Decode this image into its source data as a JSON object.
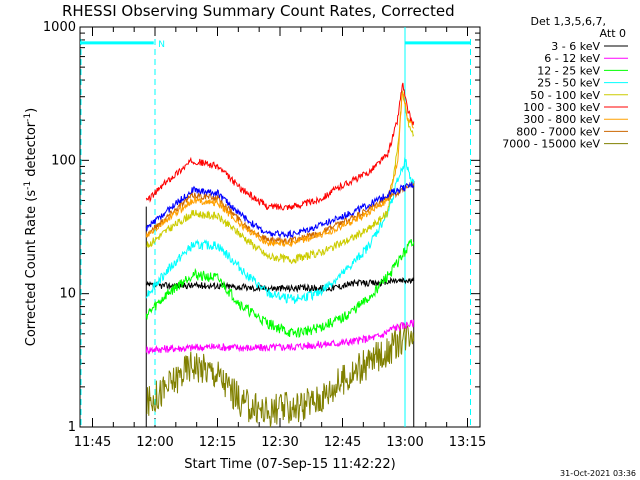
{
  "chart_data": {
    "type": "line",
    "title": "RHESSI Observing Summary Count Rates, Corrected",
    "xlabel": "Start Time (07-Sep-15 11:42:22)",
    "ylabel_main": "Corrected Count Rate (s",
    "ylabel_sup1": "-1",
    "ylabel_mid": " detector",
    "ylabel_sup2": "-1",
    "ylabel_end": ")",
    "yscale": "log",
    "ylim": [
      1,
      1000
    ],
    "xlim": [
      11.7,
      13.3
    ],
    "x_unit": "decimal hour",
    "x_ticks": [
      "11:45",
      "12:00",
      "12:15",
      "12:30",
      "12:45",
      "13:00",
      "13:15"
    ],
    "y_ticks": [
      "1",
      "10",
      "100",
      "1000"
    ],
    "legend_header": [
      "Det 1,3,5,6,7,",
      "Att 0"
    ],
    "legend_placement": "right",
    "data_start": 11.965,
    "data_end": 13.035,
    "eclipse_segments": [
      [
        11.7,
        11.995
      ],
      [
        13.0,
        13.262
      ]
    ],
    "eclipse_level": 760,
    "saa_marker": "N",
    "saa_marker_x": 12.005,
    "vertical_lines": {
      "cyan_dashed": [
        11.7,
        12.0,
        13.262
      ],
      "cyan_solid": [
        13.0
      ]
    },
    "series": [
      {
        "name": "3 - 6 keV",
        "color": "#000000",
        "x": [
          11.97,
          12.1,
          12.25,
          12.4,
          12.55,
          12.7,
          12.8,
          12.9,
          12.95,
          13.03
        ],
        "y": [
          11.5,
          11.5,
          11.5,
          11,
          11,
          11,
          12,
          12,
          12.5,
          12.5
        ]
      },
      {
        "name": "6 - 12 keV",
        "color": "#ff00ff",
        "x": [
          11.97,
          12.1,
          12.25,
          12.4,
          12.55,
          12.7,
          12.8,
          12.9,
          12.95,
          13.03
        ],
        "y": [
          3.8,
          3.9,
          4.0,
          3.9,
          4.0,
          4.2,
          4.4,
          4.8,
          5.5,
          6
        ]
      },
      {
        "name": "12 - 25 keV",
        "color": "#00ff00",
        "x": [
          11.97,
          12.05,
          12.15,
          12.25,
          12.35,
          12.45,
          12.55,
          12.65,
          12.75,
          12.85,
          12.95,
          13.03
        ],
        "y": [
          7,
          10,
          14,
          13,
          8,
          6,
          5,
          5.5,
          6.5,
          9,
          15,
          25
        ]
      },
      {
        "name": "25 - 50 keV",
        "color": "#00ffff",
        "x": [
          11.97,
          12.05,
          12.15,
          12.25,
          12.35,
          12.45,
          12.55,
          12.65,
          12.75,
          12.85,
          12.93,
          12.97,
          13.0,
          13.03
        ],
        "y": [
          10,
          15,
          23,
          23,
          15,
          10,
          9,
          10,
          14,
          22,
          40,
          70,
          100,
          68
        ]
      },
      {
        "name": "50 - 100 keV",
        "color": "#cccc00",
        "x": [
          11.97,
          12.05,
          12.15,
          12.25,
          12.35,
          12.45,
          12.55,
          12.65,
          12.75,
          12.85,
          12.93,
          12.97,
          12.99,
          13.01,
          13.03
        ],
        "y": [
          23,
          30,
          40,
          38,
          27,
          19,
          18,
          20,
          24,
          30,
          40,
          120,
          330,
          200,
          160
        ]
      },
      {
        "name": "100 - 300 keV",
        "color": "#ff0000",
        "x": [
          11.97,
          12.05,
          12.15,
          12.25,
          12.35,
          12.45,
          12.55,
          12.65,
          12.75,
          12.85,
          12.93,
          12.97,
          12.99,
          13.01,
          13.03
        ],
        "y": [
          50,
          70,
          100,
          90,
          60,
          45,
          45,
          50,
          65,
          80,
          110,
          200,
          380,
          240,
          190
        ]
      },
      {
        "name": "300 - 800 keV",
        "color": "#ffa000",
        "x": [
          11.97,
          12.05,
          12.15,
          12.25,
          12.35,
          12.45,
          12.55,
          12.65,
          12.75,
          12.85,
          12.93,
          12.97,
          12.99,
          13.01,
          13.03
        ],
        "y": [
          27,
          36,
          50,
          48,
          32,
          24,
          24,
          27,
          32,
          40,
          50,
          95,
          350,
          210,
          180
        ]
      },
      {
        "name": "800 - 7000 keV",
        "color": "#cc6600",
        "x": [
          11.97,
          12.05,
          12.15,
          12.25,
          12.35,
          12.45,
          12.55,
          12.65,
          12.75,
          12.85,
          12.95,
          13.03
        ],
        "y": [
          28,
          38,
          55,
          52,
          34,
          25,
          25,
          28,
          34,
          42,
          55,
          66
        ]
      },
      {
        "name": "7000 - 15000 keV",
        "color": "#808000",
        "x": [
          11.97,
          12.05,
          12.15,
          12.25,
          12.35,
          12.45,
          12.55,
          12.65,
          12.75,
          12.85,
          12.95,
          13.03
        ],
        "y": [
          1.5,
          2,
          3,
          2.5,
          1.5,
          1.3,
          1.4,
          1.6,
          2.2,
          3,
          4,
          5.5
        ]
      }
    ],
    "extra_series_colors": {
      "total_blue": "#0000ff"
    },
    "blue_series": {
      "x": [
        11.97,
        12.05,
        12.15,
        12.25,
        12.35,
        12.45,
        12.55,
        12.65,
        12.75,
        12.85,
        12.95,
        13.03
      ],
      "y": [
        31,
        42,
        60,
        57,
        38,
        28,
        28,
        32,
        38,
        46,
        58,
        66
      ]
    },
    "timestamp": "31-Oct-2021 03:36",
    "colors": {
      "cyan": "#00ffff",
      "axis": "#000000"
    }
  }
}
